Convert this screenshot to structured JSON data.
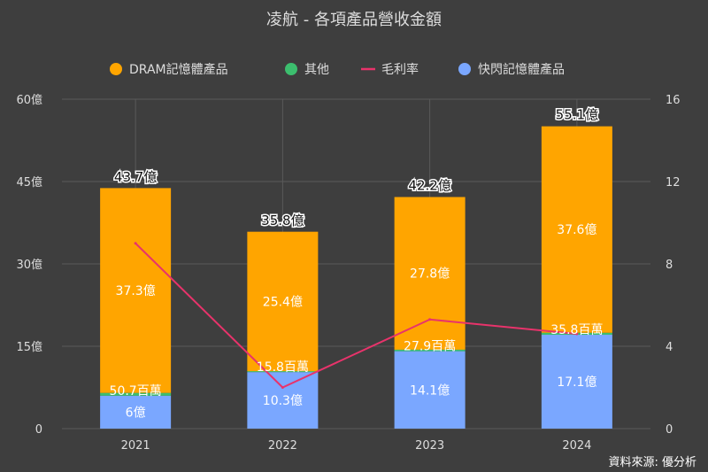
{
  "chart_data": {
    "type": "bar",
    "title": "凌航 - 各項產品營收金額",
    "categories": [
      "2021",
      "2022",
      "2023",
      "2024"
    ],
    "left_axis": {
      "ylim": [
        0,
        60
      ],
      "ticks": [
        "0",
        "15億",
        "30億",
        "45億",
        "60億"
      ],
      "tick_values": [
        0,
        15,
        30,
        45,
        60
      ]
    },
    "right_axis": {
      "ylim": [
        0,
        16
      ],
      "ticks": [
        "0",
        "4",
        "8",
        "12",
        "16"
      ],
      "tick_values": [
        0,
        4,
        8,
        12,
        16
      ]
    },
    "grid": true,
    "legend_position": "top",
    "series": [
      {
        "name": "快閃記憶體產品",
        "kind": "bar",
        "color": "#7aa7ff",
        "values": [
          6,
          10.3,
          14.1,
          17.1
        ],
        "labels": [
          "6億",
          "10.3億",
          "14.1億",
          "17.1億"
        ]
      },
      {
        "name": "其他",
        "kind": "bar",
        "color": "#3cbe6e",
        "values": [
          0.507,
          0.158,
          0.279,
          0.358
        ],
        "labels": [
          "50.7百萬",
          "15.8百萬",
          "27.9百萬",
          "35.8百萬"
        ]
      },
      {
        "name": "DRAM記憶體產品",
        "kind": "bar",
        "color": "#ffa500",
        "values": [
          37.3,
          25.4,
          27.8,
          37.6
        ],
        "labels": [
          "37.3億",
          "25.4億",
          "27.8億",
          "37.6億"
        ]
      },
      {
        "name": "毛利率",
        "kind": "line",
        "axis": "right",
        "color": "#e8336b",
        "values": [
          9.0,
          2.0,
          5.3,
          4.6
        ]
      }
    ],
    "legend_order": [
      "DRAM記憶體產品",
      "其他",
      "毛利率",
      "快閃記憶體產品"
    ],
    "totals": [
      "43.7億",
      "35.8億",
      "42.2億",
      "55.1億"
    ],
    "total_values": [
      43.7,
      35.8,
      42.2,
      55.1
    ]
  },
  "source": "資料來源: 優分析"
}
